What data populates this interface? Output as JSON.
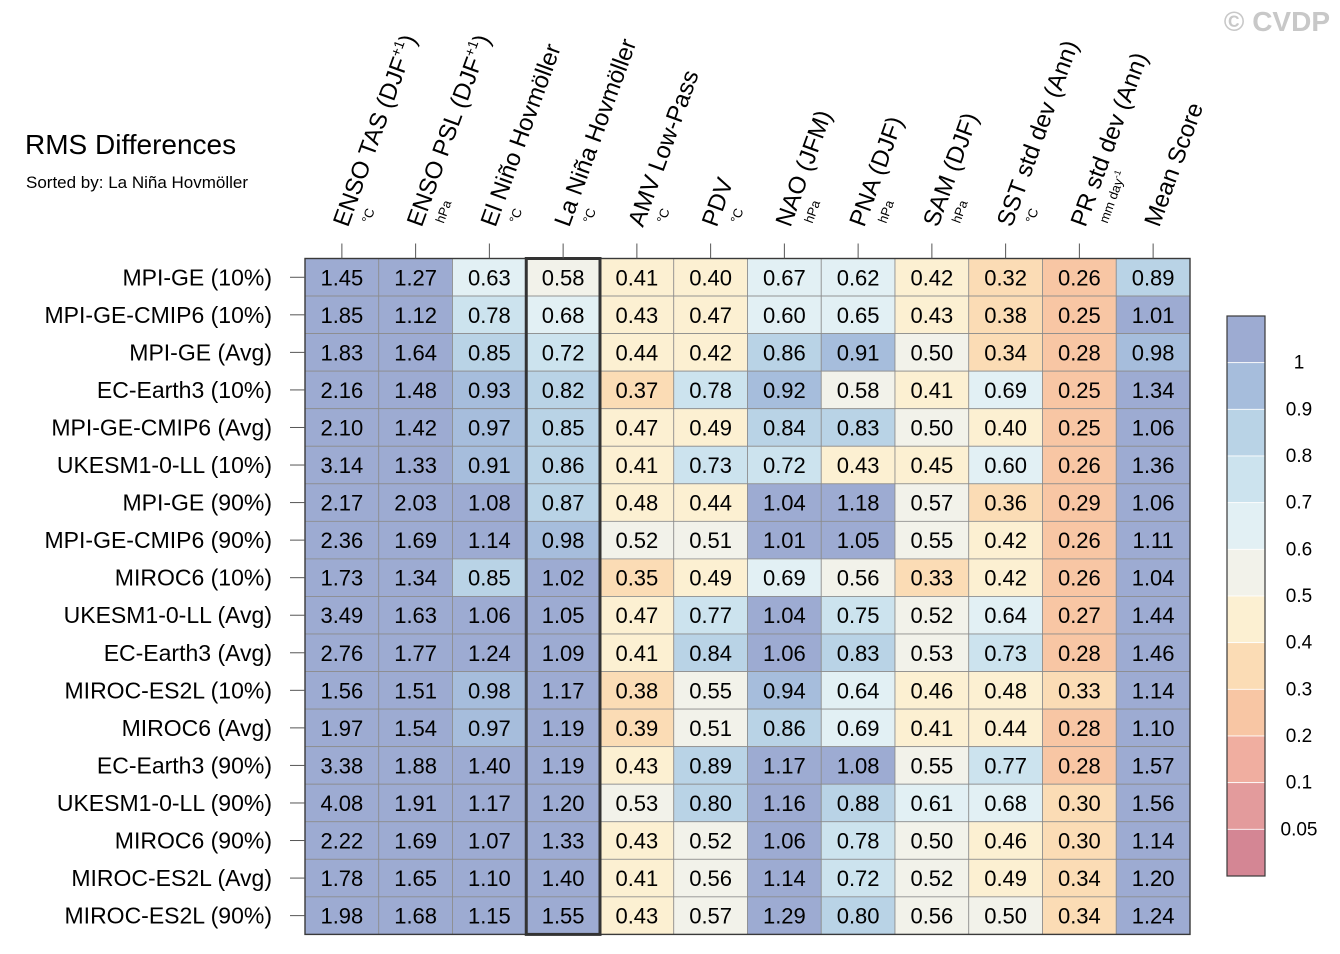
{
  "header": {
    "credit": "© CVDP",
    "title": "RMS Differences",
    "subtitle": "Sorted by: La Niña Hovmöller"
  },
  "chart_data": {
    "type": "heatmap",
    "title": "RMS Differences",
    "subtitle": "Sorted by: La Niña Hovmöller",
    "columns": [
      {
        "label": "ENSO TAS (DJF",
        "sup": "+1",
        "tail": ")",
        "unit": "°C"
      },
      {
        "label": "ENSO PSL (DJF",
        "sup": "+1",
        "tail": ")",
        "unit": "hPa"
      },
      {
        "label": "El Niño Hovmöller",
        "sup": "",
        "tail": "",
        "unit": "°C"
      },
      {
        "label": "La Niña Hovmöller",
        "sup": "",
        "tail": "",
        "unit": "°C"
      },
      {
        "label": "AMV Low-Pass",
        "sup": "",
        "tail": "",
        "unit": "°C"
      },
      {
        "label": "PDV",
        "sup": "",
        "tail": "",
        "unit": "°C"
      },
      {
        "label": "NAO (JFM)",
        "sup": "",
        "tail": "",
        "unit": "hPa"
      },
      {
        "label": "PNA (DJF)",
        "sup": "",
        "tail": "",
        "unit": "hPa"
      },
      {
        "label": "SAM (DJF)",
        "sup": "",
        "tail": "",
        "unit": "hPa"
      },
      {
        "label": "SST std dev (Ann)",
        "sup": "",
        "tail": "",
        "unit": "°C"
      },
      {
        "label": "PR std dev (Ann)",
        "sup": "",
        "tail": "",
        "unit": "mm day",
        "unit_sup": "-1"
      },
      {
        "label": "Mean Score",
        "sup": "",
        "tail": "",
        "unit": ""
      }
    ],
    "highlight_column": "La Niña Hovmöller",
    "rows": [
      "MPI-GE (10%)",
      "MPI-GE-CMIP6 (10%)",
      "MPI-GE (Avg)",
      "EC-Earth3 (10%)",
      "MPI-GE-CMIP6 (Avg)",
      "UKESM1-0-LL (10%)",
      "MPI-GE (90%)",
      "MPI-GE-CMIP6 (90%)",
      "MIROC6 (10%)",
      "UKESM1-0-LL (Avg)",
      "EC-Earth3 (Avg)",
      "MIROC-ES2L (10%)",
      "MIROC6 (Avg)",
      "EC-Earth3 (90%)",
      "UKESM1-0-LL (90%)",
      "MIROC6 (90%)",
      "MIROC-ES2L (Avg)",
      "MIROC-ES2L (90%)"
    ],
    "values": [
      [
        "1.45",
        "1.27",
        "0.63",
        "0.58",
        "0.41",
        "0.40",
        "0.67",
        "0.62",
        "0.42",
        "0.32",
        "0.26",
        "0.89"
      ],
      [
        "1.85",
        "1.12",
        "0.78",
        "0.68",
        "0.43",
        "0.47",
        "0.60",
        "0.65",
        "0.43",
        "0.38",
        "0.25",
        "1.01"
      ],
      [
        "1.83",
        "1.64",
        "0.85",
        "0.72",
        "0.44",
        "0.42",
        "0.86",
        "0.91",
        "0.50",
        "0.34",
        "0.28",
        "0.98"
      ],
      [
        "2.16",
        "1.48",
        "0.93",
        "0.82",
        "0.37",
        "0.78",
        "0.92",
        "0.58",
        "0.41",
        "0.69",
        "0.25",
        "1.34"
      ],
      [
        "2.10",
        "1.42",
        "0.97",
        "0.85",
        "0.47",
        "0.49",
        "0.84",
        "0.83",
        "0.50",
        "0.40",
        "0.25",
        "1.06"
      ],
      [
        "3.14",
        "1.33",
        "0.91",
        "0.86",
        "0.41",
        "0.73",
        "0.72",
        "0.43",
        "0.45",
        "0.60",
        "0.26",
        "1.36"
      ],
      [
        "2.17",
        "2.03",
        "1.08",
        "0.87",
        "0.48",
        "0.44",
        "1.04",
        "1.18",
        "0.57",
        "0.36",
        "0.29",
        "1.06"
      ],
      [
        "2.36",
        "1.69",
        "1.14",
        "0.98",
        "0.52",
        "0.51",
        "1.01",
        "1.05",
        "0.55",
        "0.42",
        "0.26",
        "1.11"
      ],
      [
        "1.73",
        "1.34",
        "0.85",
        "1.02",
        "0.35",
        "0.49",
        "0.69",
        "0.56",
        "0.33",
        "0.42",
        "0.26",
        "1.04"
      ],
      [
        "3.49",
        "1.63",
        "1.06",
        "1.05",
        "0.47",
        "0.77",
        "1.04",
        "0.75",
        "0.52",
        "0.64",
        "0.27",
        "1.44"
      ],
      [
        "2.76",
        "1.77",
        "1.24",
        "1.09",
        "0.41",
        "0.84",
        "1.06",
        "0.83",
        "0.53",
        "0.73",
        "0.28",
        "1.46"
      ],
      [
        "1.56",
        "1.51",
        "0.98",
        "1.17",
        "0.38",
        "0.55",
        "0.94",
        "0.64",
        "0.46",
        "0.48",
        "0.33",
        "1.14"
      ],
      [
        "1.97",
        "1.54",
        "0.97",
        "1.19",
        "0.39",
        "0.51",
        "0.86",
        "0.69",
        "0.41",
        "0.44",
        "0.28",
        "1.10"
      ],
      [
        "3.38",
        "1.88",
        "1.40",
        "1.19",
        "0.43",
        "0.89",
        "1.17",
        "1.08",
        "0.55",
        "0.77",
        "0.28",
        "1.57"
      ],
      [
        "4.08",
        "1.91",
        "1.17",
        "1.20",
        "0.53",
        "0.80",
        "1.16",
        "0.88",
        "0.61",
        "0.68",
        "0.30",
        "1.56"
      ],
      [
        "2.22",
        "1.69",
        "1.07",
        "1.33",
        "0.43",
        "0.52",
        "1.06",
        "0.78",
        "0.50",
        "0.46",
        "0.30",
        "1.14"
      ],
      [
        "1.78",
        "1.65",
        "1.10",
        "1.40",
        "0.41",
        "0.56",
        "1.14",
        "0.72",
        "0.52",
        "0.49",
        "0.34",
        "1.20"
      ],
      [
        "1.98",
        "1.68",
        "1.15",
        "1.55",
        "0.43",
        "0.57",
        "1.29",
        "0.80",
        "0.56",
        "0.50",
        "0.34",
        "1.24"
      ]
    ],
    "colorbar": {
      "labels": [
        "1",
        "0.9",
        "0.8",
        "0.7",
        "0.6",
        "0.5",
        "0.4",
        "0.3",
        "0.2",
        "0.1",
        "0.05"
      ],
      "thresholds": [
        1,
        0.9,
        0.8,
        0.7,
        0.6,
        0.5,
        0.4,
        0.3,
        0.2,
        0.1,
        0.05
      ],
      "colors": [
        "#9dabd2",
        "#a6bddc",
        "#b9d3e6",
        "#cce3ee",
        "#e2f0f4",
        "#f2f2ea",
        "#fcf0d2",
        "#fbdcb5",
        "#f8c6a4",
        "#f0aea0",
        "#e39b9c",
        "#d48694"
      ]
    }
  }
}
